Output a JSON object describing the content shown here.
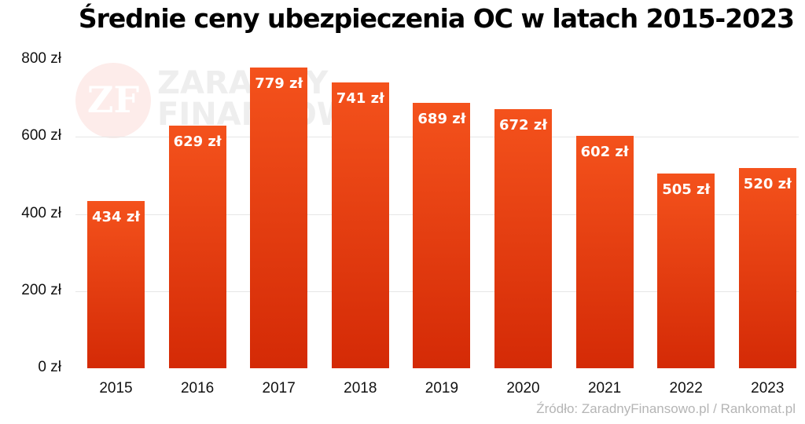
{
  "chart_data": {
    "type": "bar",
    "title": "Średnie ceny ubezpieczenia OC w latach 2015-2023",
    "categories": [
      "2015",
      "2016",
      "2017",
      "2018",
      "2019",
      "2020",
      "2021",
      "2022",
      "2023"
    ],
    "values": [
      434,
      629,
      779,
      741,
      689,
      672,
      602,
      505,
      520
    ],
    "value_labels": [
      "434 zł",
      "629 zł",
      "779 zł",
      "741 zł",
      "689 zł",
      "672 zł",
      "602 zł",
      "505 zł",
      "520 zł"
    ],
    "xlabel": "",
    "ylabel": "",
    "ylim": [
      0,
      800
    ],
    "yticks": [
      "0 zł",
      "200 zł",
      "400 zł",
      "600 zł",
      "800 zł"
    ],
    "grid": true,
    "legend": null,
    "bar_color_top": "#f4521c",
    "bar_color_bottom": "#d42a06",
    "source": "Źródło: ZaradnyFinansowo.pl / Rankomat.pl"
  },
  "watermark": {
    "logo": "ZF",
    "line1": "ZARADNY",
    "line2": "FINANSOWO"
  }
}
